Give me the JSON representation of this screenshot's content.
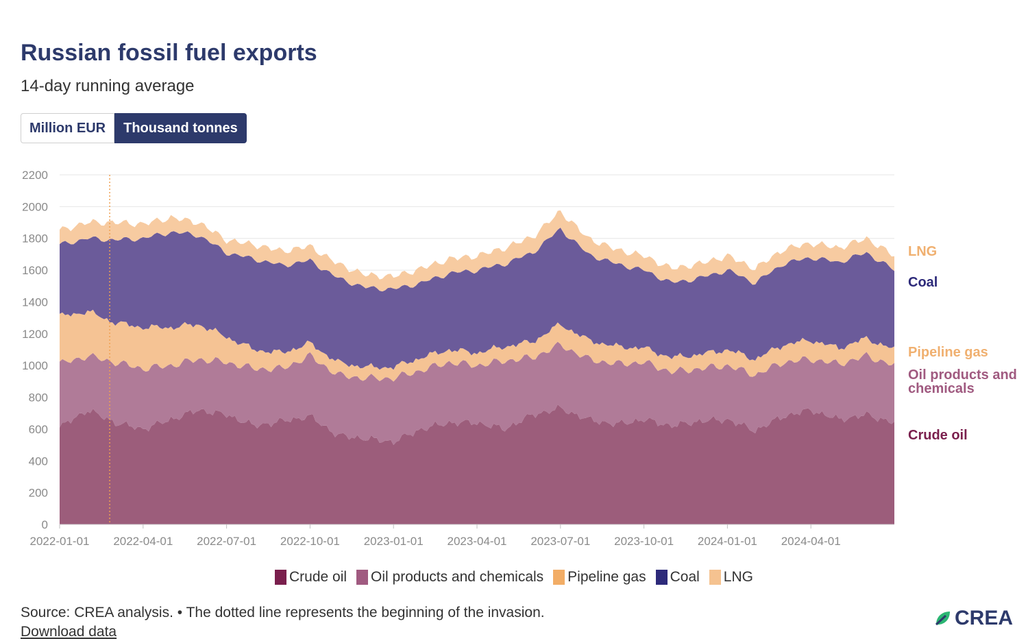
{
  "header": {
    "title": "Russian fossil fuel exports",
    "subtitle": "14-day running average"
  },
  "toggle": {
    "million_eur": "Million EUR",
    "thousand_tonnes": "Thousand tonnes",
    "selected": "Thousand tonnes"
  },
  "footer": {
    "source": "Source: CREA analysis. • The dotted line represents the beginning of the invasion.",
    "download": "Download data",
    "logo": "CREA"
  },
  "chart_data": {
    "type": "area",
    "stacked": true,
    "title": "Russian fossil fuel exports",
    "subtitle": "14-day running average",
    "unit": "Thousand tonnes",
    "ylim": [
      0,
      2200
    ],
    "yticks": [
      0,
      200,
      400,
      600,
      800,
      1000,
      1200,
      1400,
      1600,
      1800,
      2000,
      2200
    ],
    "x_tick_labels": [
      "2022-01-01",
      "2022-04-01",
      "2022-07-01",
      "2022-10-01",
      "2023-01-01",
      "2023-04-01",
      "2023-07-01",
      "2023-10-01",
      "2024-01-01",
      "2024-04-01"
    ],
    "x_tick_months": [
      0,
      3,
      6,
      9,
      12,
      15,
      18,
      21,
      24,
      27
    ],
    "x_range_months": [
      0,
      30
    ],
    "invasion_marker_month": 1.8,
    "x_months": [
      0,
      1,
      2,
      3,
      4,
      5,
      6,
      7,
      8,
      9,
      10,
      11,
      12,
      13,
      14,
      15,
      16,
      17,
      18,
      19,
      20,
      21,
      22,
      23,
      24,
      25,
      26,
      27,
      28,
      29,
      30
    ],
    "series": [
      {
        "name": "Crude oil",
        "color": "#9c5d7b",
        "legend_color": "#7a1f4d",
        "label_color": "#7a1f4d",
        "values": [
          610,
          720,
          640,
          600,
          660,
          720,
          690,
          620,
          650,
          680,
          560,
          540,
          520,
          600,
          640,
          640,
          600,
          690,
          730,
          660,
          630,
          660,
          620,
          650,
          660,
          590,
          680,
          720,
          660,
          690,
          640
        ]
      },
      {
        "name": "Oil products and chemicals",
        "color": "#b07b98",
        "legend_color": "#a05a80",
        "label_color": "#a05a80",
        "values": [
          400,
          340,
          380,
          380,
          340,
          320,
          330,
          360,
          330,
          380,
          380,
          380,
          400,
          370,
          380,
          360,
          430,
          360,
          400,
          380,
          380,
          360,
          340,
          330,
          340,
          350,
          340,
          320,
          350,
          370,
          360
        ]
      },
      {
        "name": "Pipeline gas",
        "color": "#f5c394",
        "legend_color": "#f2ad66",
        "label_color": "#f0b070",
        "values": [
          300,
          280,
          250,
          260,
          240,
          220,
          160,
          120,
          100,
          80,
          80,
          70,
          70,
          80,
          80,
          80,
          90,
          100,
          130,
          120,
          110,
          90,
          90,
          90,
          100,
          100,
          110,
          120,
          100,
          110,
          100
        ]
      },
      {
        "name": "Coal",
        "color": "#6b5b9a",
        "legend_color": "#2d2a7a",
        "label_color": "#2d2a7a",
        "values": [
          450,
          460,
          520,
          560,
          600,
          560,
          530,
          570,
          550,
          520,
          530,
          500,
          490,
          470,
          480,
          520,
          520,
          560,
          600,
          540,
          520,
          490,
          470,
          480,
          500,
          480,
          510,
          520,
          540,
          540,
          500
        ]
      },
      {
        "name": "LNG",
        "color": "#f7cba1",
        "legend_color": "#f5c290",
        "label_color": "#f0b070",
        "values": [
          90,
          100,
          110,
          90,
          90,
          80,
          80,
          90,
          90,
          90,
          90,
          80,
          80,
          90,
          90,
          90,
          100,
          100,
          110,
          100,
          90,
          90,
          90,
          90,
          90,
          90,
          90,
          90,
          90,
          90,
          90
        ]
      }
    ],
    "end_labels": [
      "LNG",
      "Coal",
      "Pipeline gas",
      "Oil products and chemicals",
      "Crude oil"
    ]
  }
}
